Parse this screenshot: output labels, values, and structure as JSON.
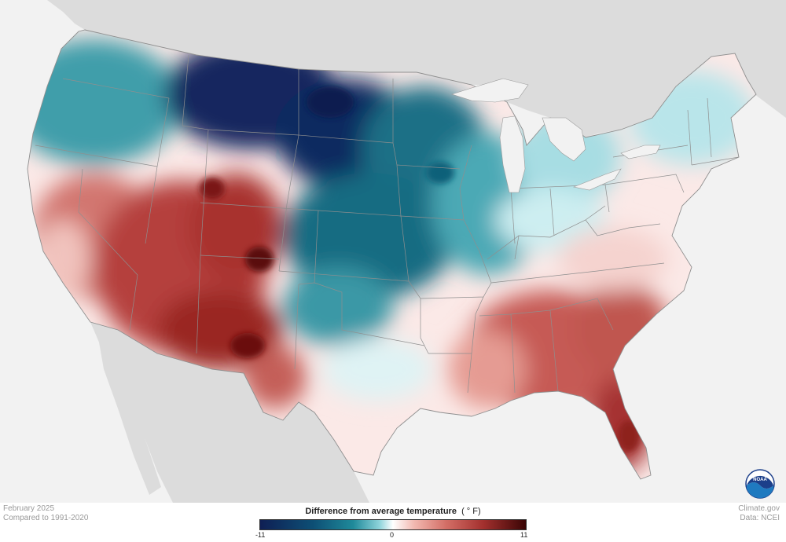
{
  "map": {
    "title": "Difference from average temperature",
    "unit": "( ° F)",
    "period": "February 2025",
    "baseline": "Compared to 1991-2020",
    "credit": "Climate.gov",
    "source": "Data: NCEI"
  },
  "legend": {
    "min_label": "-11",
    "mid_label": "0",
    "max_label": "11",
    "colors": [
      "#0f1f54",
      "#0d4f75",
      "#1f8a9a",
      "#8fd4db",
      "#ffffff",
      "#f2b8b0",
      "#d36e66",
      "#a3302e",
      "#3a0505"
    ]
  },
  "logo": {
    "icon": "noaa-logo-icon",
    "text": "NOAA"
  },
  "colors": {
    "land_outside": "#dcdcdc",
    "water": "#f2f2f2",
    "state_border": "#9a9a9a"
  }
}
